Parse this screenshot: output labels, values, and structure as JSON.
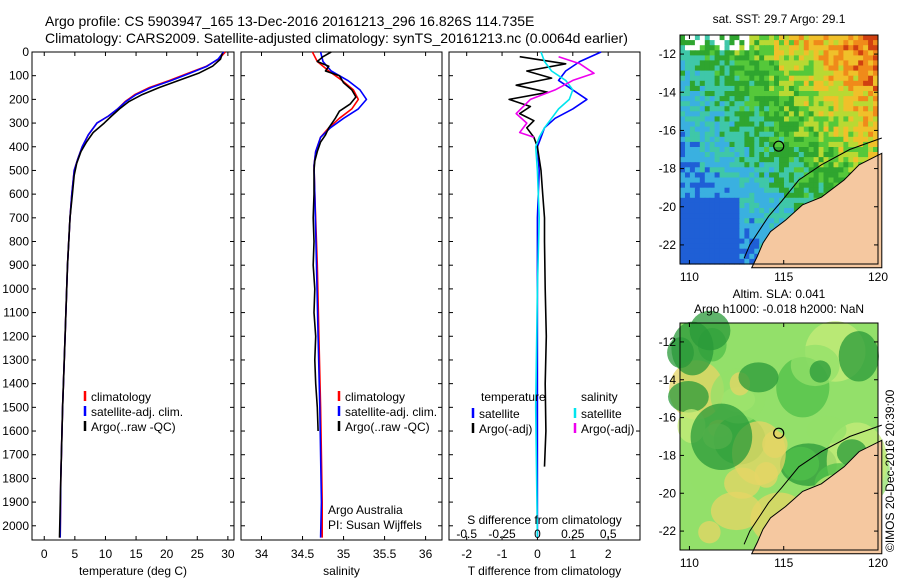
{
  "header": {
    "line1": "Argo profile: CS 5903947_165 13-Dec-2016 20161213_296 16.826S 114.735E",
    "line2": "Climatology: CARS2009. Satellite-adjusted climatology: synTS_20161213.nc (0.0064d earlier)"
  },
  "colors": {
    "climatology": "#ff0000",
    "satellite_clim": "#0000ff",
    "argo": "#000000",
    "sal_satellite": "#00e5ee",
    "sal_argo": "#ee00ee",
    "land": "#f5c8a0"
  },
  "depth_axis": {
    "ylim": [
      0,
      2060
    ],
    "ticks": [
      0,
      100,
      200,
      300,
      400,
      500,
      600,
      700,
      800,
      900,
      1000,
      1100,
      1200,
      1300,
      1400,
      1500,
      1600,
      1700,
      1800,
      1900,
      2000
    ],
    "tick_labels": [
      "0",
      "100",
      "200",
      "300",
      "400",
      "500",
      "600",
      "700",
      "800",
      "900",
      "1000",
      "1100",
      "1200",
      "1300",
      "1400",
      "1500",
      "1600",
      "1700",
      "1800",
      "1900",
      "2000"
    ]
  },
  "chart_data": [
    {
      "id": "temperature",
      "type": "line",
      "xlabel": "temperature (deg C)",
      "xlim": [
        -2,
        31
      ],
      "xticks": [
        0,
        5,
        10,
        15,
        20,
        25,
        30
      ],
      "xtick_labels": [
        "0",
        "5",
        "10",
        "15",
        "20",
        "25",
        "30"
      ],
      "legend": [
        "climatology",
        "satellite-adj. clim.",
        "Argo(..raw -QC)"
      ],
      "series": [
        {
          "name": "climatology",
          "color": "#ff0000",
          "x": [
            29.6,
            28.5,
            26.5,
            23.5,
            20.5,
            17.2,
            14.8,
            13.2,
            12.0,
            10.5,
            8.6,
            7.2,
            6.2,
            5.5,
            4.9,
            4.5,
            4.2,
            3.8,
            3.4,
            3.0,
            2.7,
            2.6
          ],
          "y": [
            0,
            30,
            60,
            90,
            120,
            150,
            180,
            210,
            240,
            270,
            300,
            350,
            400,
            450,
            500,
            600,
            700,
            900,
            1200,
            1500,
            1800,
            2050
          ]
        },
        {
          "name": "satellite-adj. clim.",
          "color": "#0000ff",
          "x": [
            29.3,
            28.4,
            26.6,
            23.8,
            20.8,
            17.5,
            15.0,
            13.3,
            12.0,
            10.5,
            8.6,
            7.2,
            6.2,
            5.5,
            4.9,
            4.5,
            4.2,
            3.8,
            3.4,
            3.0,
            2.7,
            2.6
          ],
          "y": [
            0,
            30,
            60,
            90,
            120,
            150,
            180,
            210,
            240,
            270,
            300,
            350,
            400,
            450,
            500,
            600,
            700,
            900,
            1200,
            1500,
            1800,
            2050
          ]
        },
        {
          "name": "Argo(..raw -QC)",
          "color": "#000000",
          "x": [
            29.1,
            28.8,
            27.5,
            25.2,
            22.0,
            18.8,
            16.0,
            13.8,
            12.3,
            11.0,
            9.8,
            8.0,
            6.9,
            6.0,
            5.3,
            4.9,
            4.6,
            4.2,
            3.8,
            3.4,
            3.0,
            2.7,
            2.5
          ],
          "y": [
            5,
            30,
            60,
            90,
            120,
            150,
            180,
            210,
            240,
            270,
            300,
            340,
            380,
            420,
            470,
            520,
            600,
            700,
            900,
            1200,
            1500,
            1800,
            2050
          ]
        }
      ]
    },
    {
      "id": "salinity",
      "type": "line",
      "xlabel": "salinity",
      "xlim": [
        33.75,
        36.2
      ],
      "xticks": [
        34,
        34.5,
        35,
        35.5,
        36
      ],
      "xtick_labels": [
        "34",
        "34.5",
        "35",
        "35.5",
        "36"
      ],
      "legend": [
        "climatology",
        "satellite-adj. clim.",
        "Argo(..raw -QC)"
      ],
      "annotation": [
        "Argo Australia",
        "PI: Susan Wijffels"
      ],
      "series": [
        {
          "name": "climatology",
          "color": "#ff0000",
          "x": [
            34.62,
            34.68,
            34.82,
            34.98,
            35.12,
            35.18,
            35.1,
            34.95,
            34.82,
            34.72,
            34.66,
            34.64,
            34.65,
            34.68,
            34.7,
            34.72,
            34.73,
            34.74,
            34.74
          ],
          "y": [
            0,
            40,
            80,
            120,
            160,
            200,
            240,
            280,
            320,
            360,
            420,
            480,
            600,
            900,
            1200,
            1500,
            1700,
            1900,
            2050
          ]
        },
        {
          "name": "satellite-adj. clim.",
          "color": "#0000ff",
          "x": [
            34.72,
            34.75,
            34.85,
            35.05,
            35.2,
            35.28,
            35.18,
            35.0,
            34.84,
            34.72,
            34.66,
            34.64,
            34.65,
            34.67,
            34.69,
            34.71,
            34.72,
            34.73,
            34.72
          ],
          "y": [
            0,
            40,
            80,
            120,
            160,
            200,
            240,
            280,
            320,
            360,
            420,
            480,
            600,
            900,
            1200,
            1500,
            1700,
            1900,
            2050
          ]
        },
        {
          "name": "Argo(..raw -QC)",
          "color": "#000000",
          "x": [
            34.85,
            34.75,
            34.68,
            34.82,
            34.78,
            34.95,
            35.0,
            35.1,
            35.15,
            35.08,
            34.95,
            34.9,
            34.82,
            34.78,
            34.72,
            34.68,
            34.65,
            34.64,
            34.64,
            34.63,
            34.64,
            34.63,
            34.65,
            34.64,
            34.66,
            34.65,
            34.66,
            34.68,
            34.69
          ],
          "y": [
            0,
            20,
            40,
            60,
            80,
            100,
            130,
            160,
            190,
            220,
            250,
            280,
            320,
            350,
            380,
            420,
            460,
            500,
            600,
            700,
            800,
            900,
            1000,
            1100,
            1200,
            1300,
            1400,
            1500,
            1600
          ]
        }
      ]
    },
    {
      "id": "difference",
      "type": "line",
      "xlabel": "T difference from climatology",
      "top_xlabel": "S difference from climatology",
      "xlim": [
        -2.5,
        2.9
      ],
      "xticks": [
        -2,
        -1,
        0,
        1,
        2
      ],
      "xtick_labels": [
        "-2",
        "-1",
        "0",
        "1",
        "2"
      ],
      "s_xticks": [
        -0.5,
        -0.25,
        0,
        0.25,
        0.5
      ],
      "s_xtick_labels": [
        "-0.5",
        "-0.25",
        "0",
        "0.25",
        "0.5"
      ],
      "legend_temperature_title": "temperature",
      "legend_salinity_title": "salinity",
      "legend": [
        "satellite",
        "Argo(-adj)",
        "satellite",
        "Argo(-adj)"
      ],
      "series": [
        {
          "name": "temperature satellite",
          "color": "#0000ff",
          "x": [
            1.8,
            1.2,
            0.8,
            0.6,
            1.0,
            1.4,
            1.0,
            0.5,
            0.2,
            0.1,
            0.0,
            0.05,
            0.0,
            0.0,
            0.0,
            0.0
          ],
          "y": [
            0,
            40,
            80,
            120,
            160,
            200,
            240,
            280,
            320,
            360,
            400,
            500,
            700,
            1000,
            1500,
            2050
          ]
        },
        {
          "name": "temperature Argo(-adj)",
          "color": "#000000",
          "x": [
            -0.5,
            0.8,
            -0.3,
            0.4,
            -0.6,
            0.3,
            -0.8,
            -0.2,
            -0.5,
            -0.1,
            -0.3,
            -0.1,
            0.0,
            0.05,
            0.1,
            0.15,
            0.2,
            0.2,
            0.22,
            0.25,
            0.22,
            0.24,
            0.2
          ],
          "y": [
            20,
            50,
            80,
            110,
            140,
            170,
            200,
            230,
            260,
            290,
            320,
            360,
            400,
            450,
            500,
            600,
            700,
            800,
            1000,
            1200,
            1400,
            1600,
            1750
          ]
        },
        {
          "name": "salinity satellite",
          "color": "#00e5ee",
          "x": [
            0.1,
            0.2,
            0.4,
            0.8,
            1.0,
            0.9,
            0.6,
            0.4,
            0.2,
            0.05,
            -0.05,
            0.0,
            0.05,
            0.0,
            -0.05,
            0.0
          ],
          "y": [
            0,
            40,
            80,
            120,
            160,
            200,
            240,
            280,
            320,
            360,
            400,
            500,
            700,
            1000,
            1500,
            2050
          ]
        },
        {
          "name": "salinity Argo(-adj)",
          "color": "#ee00ee",
          "x": [
            0.6,
            1.2,
            1.6,
            1.0,
            0.5,
            -0.2,
            -0.6,
            -0.3,
            -0.5,
            -0.1
          ],
          "y": [
            20,
            50,
            90,
            120,
            160,
            200,
            260,
            300,
            340,
            360
          ]
        }
      ]
    },
    {
      "id": "map_sst",
      "type": "heatmap",
      "title": "sat. SST: 29.7  Argo: 29.1",
      "xlim": [
        109.5,
        120
      ],
      "ylim": [
        -23,
        -11
      ],
      "xticks": [
        110,
        115,
        120
      ],
      "xtick_labels": [
        "110",
        "115",
        "120"
      ],
      "yticks": [
        -12,
        -14,
        -16,
        -18,
        -20,
        -22
      ],
      "ytick_labels": [
        "-12",
        "-14",
        "-16",
        "-18",
        "-20",
        "-22"
      ],
      "argo_location": [
        114.735,
        -16.826
      ]
    },
    {
      "id": "map_sla",
      "type": "heatmap",
      "title": "Altim. SLA: 0.041",
      "subtitle": "Argo h1000: -0.018  h2000: NaN",
      "xlim": [
        109.5,
        120
      ],
      "ylim": [
        -23,
        -11
      ],
      "xticks": [
        110,
        115,
        120
      ],
      "xtick_labels": [
        "110",
        "115",
        "120"
      ],
      "yticks": [
        -12,
        -14,
        -16,
        -18,
        -20,
        -22
      ],
      "ytick_labels": [
        "-12",
        "-14",
        "-16",
        "-18",
        "-20",
        "-22"
      ],
      "argo_location": [
        114.735,
        -16.826
      ]
    }
  ],
  "footer": {
    "credit": "©IMOS 20-Dec-2016 20:39:00"
  }
}
